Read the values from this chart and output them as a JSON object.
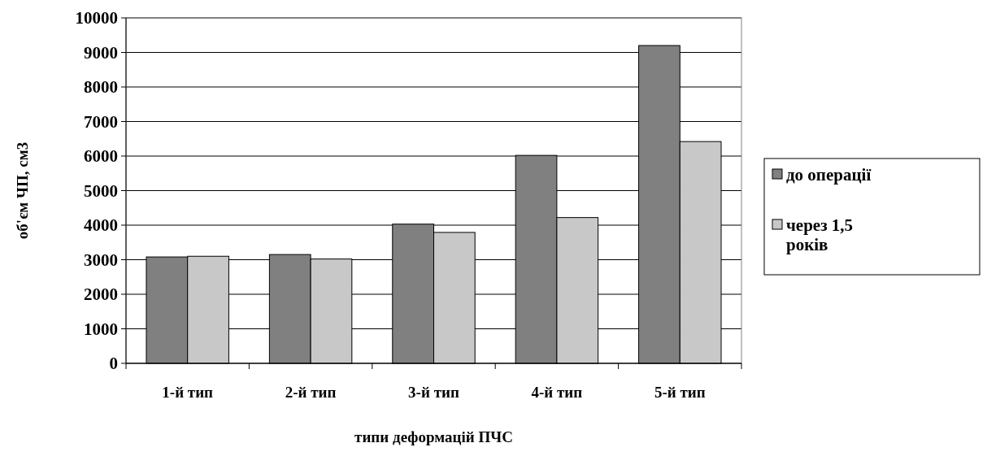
{
  "chart_data": {
    "type": "bar",
    "xlabel": "типи деформацій ПЧС",
    "ylabel": "об'єм ЧП, см3",
    "categories": [
      "1-й тип",
      "2-й тип",
      "3-й тип",
      "4-й тип",
      "5-й тип"
    ],
    "series": [
      {
        "name": "до операції",
        "color": "#808080",
        "values": [
          3080,
          3150,
          4030,
          6020,
          9200
        ]
      },
      {
        "name": "через 1,5 років",
        "color": "#c8c8c8",
        "values": [
          3100,
          3020,
          3790,
          4220,
          6420
        ]
      }
    ],
    "ylim": [
      0,
      10000
    ],
    "yticks": [
      0,
      1000,
      2000,
      3000,
      4000,
      5000,
      6000,
      7000,
      8000,
      9000,
      10000
    ],
    "grid": "y",
    "legend": "right"
  }
}
